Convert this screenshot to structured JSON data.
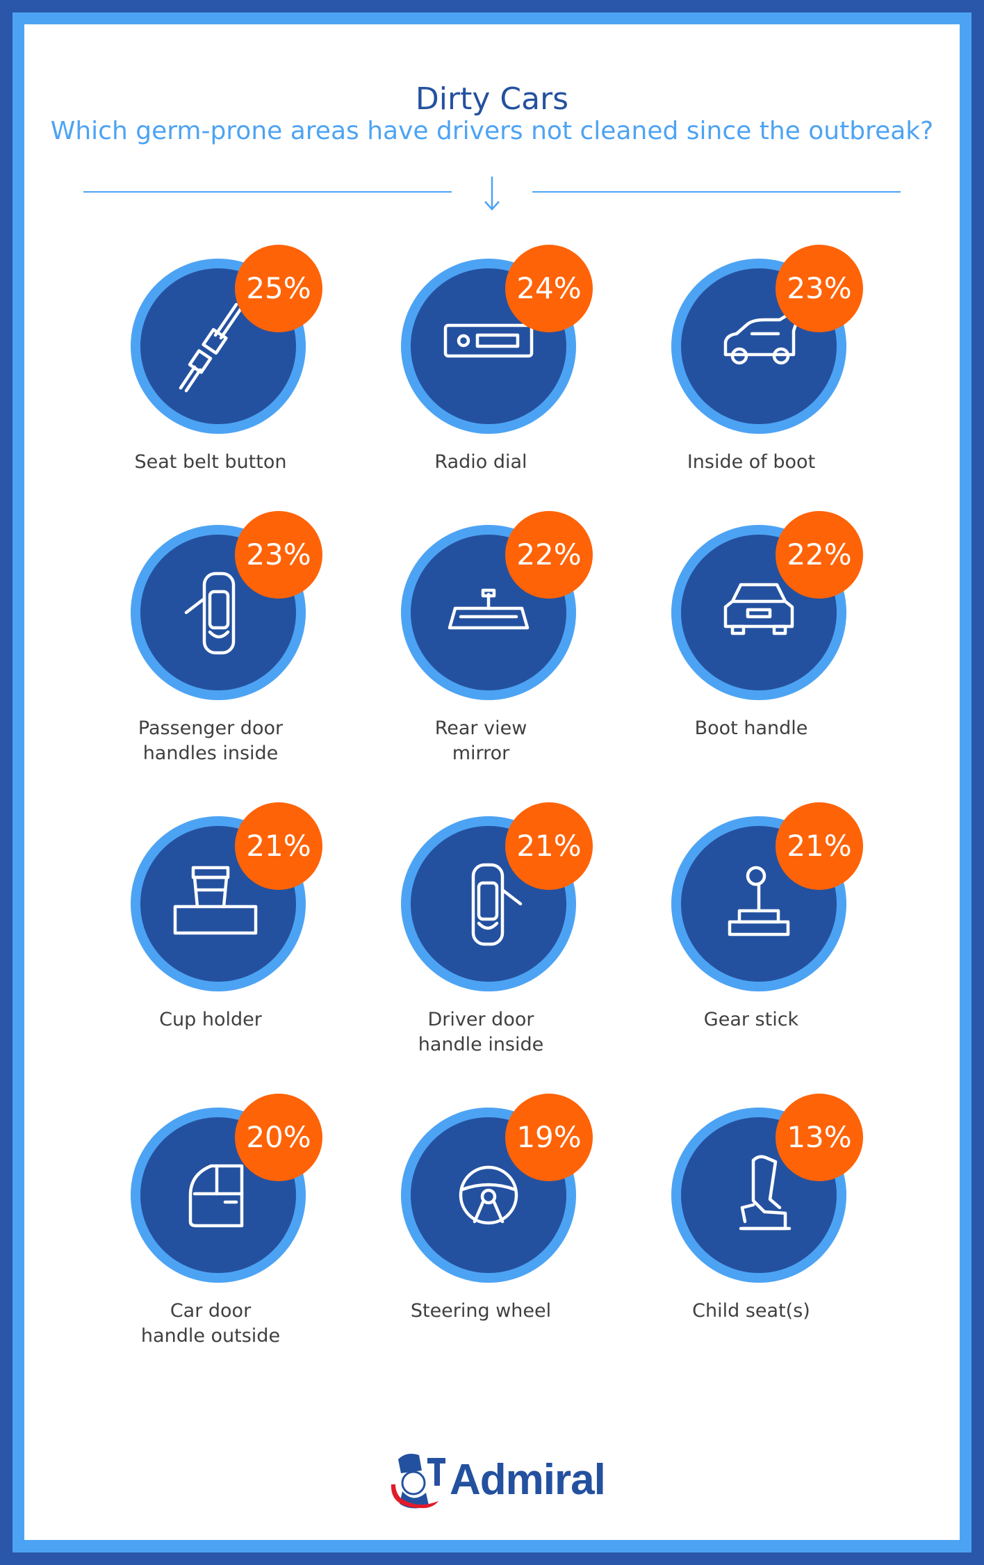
{
  "chart_data": {
    "type": "table",
    "title": "Dirty Cars",
    "subtitle": "Which germ-prone areas have drivers not cleaned since the outbreak?",
    "items": [
      {
        "label": "Seat belt button",
        "value": 25,
        "value_label": "25%",
        "icon": "seat-belt-icon"
      },
      {
        "label": "Radio dial",
        "value": 24,
        "value_label": "24%",
        "icon": "radio-icon"
      },
      {
        "label": "Inside of boot",
        "value": 23,
        "value_label": "23%",
        "icon": "open-boot-car-icon"
      },
      {
        "label": "Passenger door\nhandles inside",
        "value": 23,
        "value_label": "23%",
        "icon": "passenger-door-icon"
      },
      {
        "label": "Rear view\nmirror",
        "value": 22,
        "value_label": "22%",
        "icon": "rear-view-mirror-icon"
      },
      {
        "label": "Boot handle",
        "value": 22,
        "value_label": "22%",
        "icon": "car-rear-icon"
      },
      {
        "label": "Cup holder",
        "value": 21,
        "value_label": "21%",
        "icon": "cup-holder-icon"
      },
      {
        "label": "Driver door\nhandle inside",
        "value": 21,
        "value_label": "21%",
        "icon": "driver-door-icon"
      },
      {
        "label": "Gear stick",
        "value": 21,
        "value_label": "21%",
        "icon": "gear-stick-icon"
      },
      {
        "label": "Car door\nhandle outside",
        "value": 20,
        "value_label": "20%",
        "icon": "car-door-icon"
      },
      {
        "label": "Steering wheel",
        "value": 19,
        "value_label": "19%",
        "icon": "steering-wheel-icon"
      },
      {
        "label": "Child seat(s)",
        "value": 13,
        "value_label": "13%",
        "icon": "child-seat-icon"
      }
    ]
  },
  "brand": {
    "name": "Admiral"
  },
  "colors": {
    "frame": "#2a57a9",
    "accent_blue": "#4da3f3",
    "disc_blue": "#24519f",
    "badge_orange": "#ff6308",
    "text": "#3f3f3f"
  }
}
